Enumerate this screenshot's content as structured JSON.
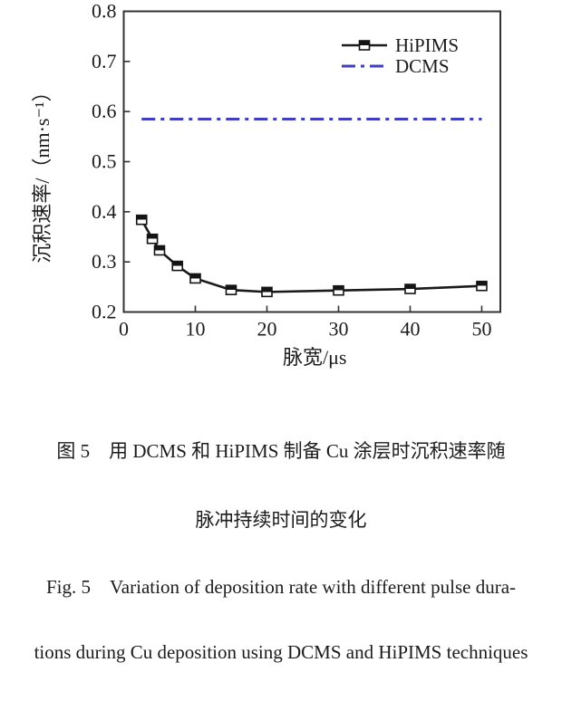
{
  "chart_data": {
    "type": "line",
    "title": "",
    "xlabel": "脉宽/μs",
    "ylabel": "沉积速率/（nm·s⁻¹）",
    "xlim": [
      0,
      52.6
    ],
    "ylim": [
      0.2,
      0.8
    ],
    "xticks": [
      0,
      10,
      20,
      30,
      40,
      50
    ],
    "yticks": [
      0.2,
      0.3,
      0.4,
      0.5,
      0.6,
      0.7,
      0.8
    ],
    "grid": false,
    "legend": {
      "position": "top-right-inside",
      "entries": [
        "HiPIMS",
        "DCMS"
      ]
    },
    "series": [
      {
        "name": "HiPIMS",
        "type": "line",
        "color": "#1a1a1a",
        "marker": "half-filled-square",
        "x": [
          2.5,
          4,
          5,
          7.5,
          10,
          15,
          20,
          30,
          40,
          50
        ],
        "y": [
          0.384,
          0.346,
          0.323,
          0.292,
          0.267,
          0.244,
          0.24,
          0.243,
          0.246,
          0.252
        ]
      },
      {
        "name": "DCMS",
        "type": "line",
        "style": "dash-dot",
        "color": "#3f3fc0",
        "marker": "none",
        "x": [
          2.5,
          50
        ],
        "y": [
          0.585,
          0.585
        ]
      }
    ]
  },
  "caption": {
    "zh_line1": "图 5　用 DCMS 和 HiPIMS 制备 Cu 涂层时沉积速率随",
    "zh_line2": "脉冲持续时间的变化",
    "en_line1": "Fig. 5　Variation of deposition rate with different pulse dura-",
    "en_line2": "tions during Cu deposition using DCMS and HiPIMS techniques"
  }
}
